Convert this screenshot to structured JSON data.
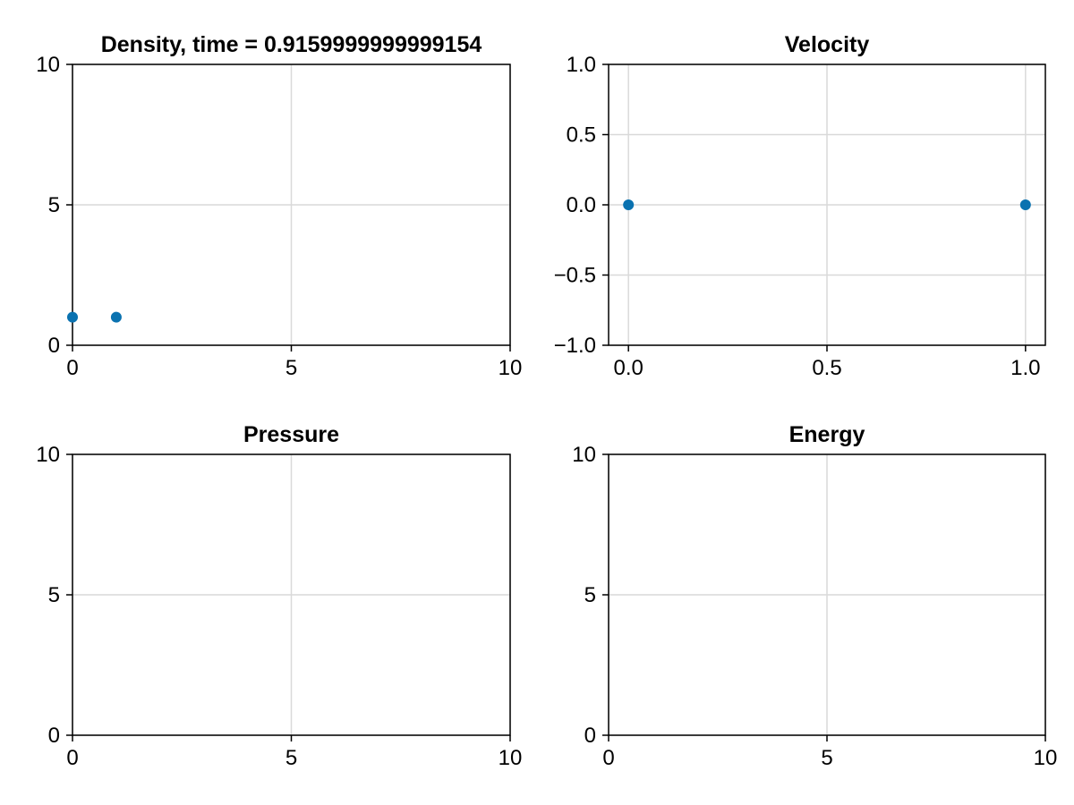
{
  "chart_data": [
    {
      "type": "scatter",
      "title": "Density, time = 0.9159999999999154",
      "xlabel": "",
      "ylabel": "",
      "xlim": [
        0,
        10
      ],
      "ylim": [
        0,
        10
      ],
      "xticks": [
        0,
        5,
        10
      ],
      "yticks": [
        0,
        5,
        10
      ],
      "xtick_labels": [
        "0",
        "5",
        "10"
      ],
      "ytick_labels": [
        "0",
        "5",
        "10"
      ],
      "grid": true,
      "color": "#0a72b0",
      "series": [
        {
          "x": [
            0,
            1
          ],
          "y": [
            1,
            1
          ]
        }
      ]
    },
    {
      "type": "scatter",
      "title": "Velocity",
      "xlabel": "",
      "ylabel": "",
      "xlim": [
        -0.05,
        1.05
      ],
      "ylim": [
        -1,
        1
      ],
      "xticks": [
        0,
        0.5,
        1
      ],
      "yticks": [
        -1,
        -0.5,
        0,
        0.5,
        1
      ],
      "xtick_labels": [
        "0.0",
        "0.5",
        "1.0"
      ],
      "ytick_labels": [
        "−1.0",
        "−0.5",
        "0.0",
        "0.5",
        "1.0"
      ],
      "grid": true,
      "color": "#0a72b0",
      "series": [
        {
          "x": [
            0,
            1
          ],
          "y": [
            0,
            0
          ]
        }
      ]
    },
    {
      "type": "scatter",
      "title": "Pressure",
      "xlabel": "",
      "ylabel": "",
      "xlim": [
        0,
        10
      ],
      "ylim": [
        0,
        10
      ],
      "xticks": [
        0,
        5,
        10
      ],
      "yticks": [
        0,
        5,
        10
      ],
      "xtick_labels": [
        "0",
        "5",
        "10"
      ],
      "ytick_labels": [
        "0",
        "5",
        "10"
      ],
      "grid": true,
      "color": "#0a72b0",
      "series": []
    },
    {
      "type": "scatter",
      "title": "Energy",
      "xlabel": "",
      "ylabel": "",
      "xlim": [
        0,
        10
      ],
      "ylim": [
        0,
        10
      ],
      "xticks": [
        0,
        5,
        10
      ],
      "yticks": [
        0,
        5,
        10
      ],
      "xtick_labels": [
        "0",
        "5",
        "10"
      ],
      "ytick_labels": [
        "0",
        "5",
        "10"
      ],
      "grid": true,
      "color": "#0a72b0",
      "series": []
    }
  ]
}
